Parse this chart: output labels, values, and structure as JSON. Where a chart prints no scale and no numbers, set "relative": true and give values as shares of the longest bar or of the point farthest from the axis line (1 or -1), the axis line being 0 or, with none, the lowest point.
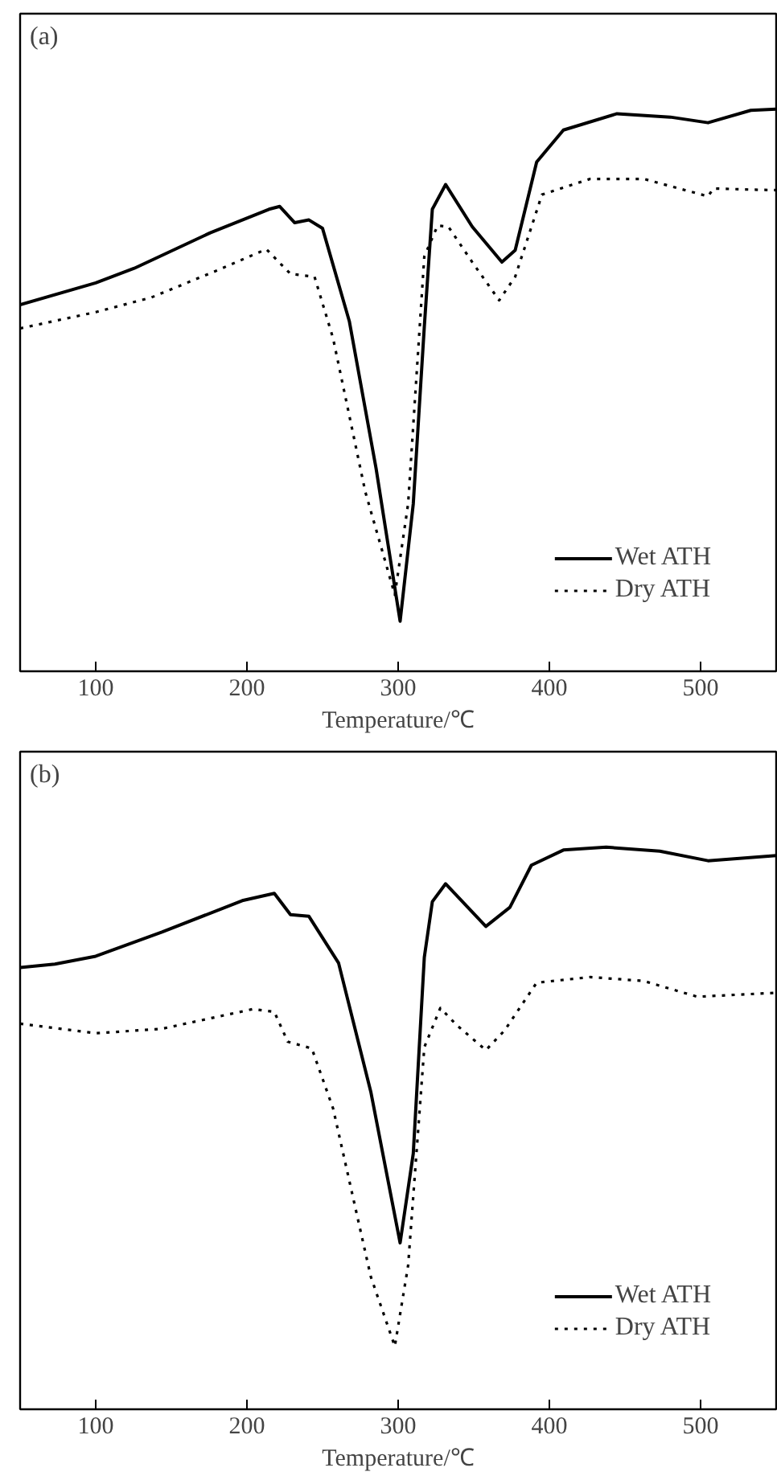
{
  "chart_data": [
    {
      "type": "line",
      "relative": true,
      "xlabel": "Temperature/℃",
      "annotations": [
        "(a)"
      ],
      "xlim": [
        50,
        550
      ],
      "xticks": [
        100,
        200,
        300,
        400,
        500
      ],
      "grid": false,
      "legend": "bottom right",
      "tick_labels": "x",
      "series": [
        {
          "name": "Wet ATH",
          "color": "#000000",
          "line_style": "solid",
          "x": [
            50,
            100,
            125.5,
            175.7,
            214.6,
            221.7,
            231.6,
            241,
            250,
            267.7,
            285.4,
            301.3,
            310,
            317.3,
            322.6,
            331.4,
            349,
            368.6,
            377.4,
            391.6,
            409.3,
            444.7,
            480,
            504.9,
            533.2,
            550
          ],
          "values": [
            0.652,
            0.691,
            0.717,
            0.78,
            0.822,
            0.827,
            0.798,
            0.803,
            0.788,
            0.623,
            0.361,
            0.089,
            0.298,
            0.613,
            0.822,
            0.866,
            0.791,
            0.728,
            0.749,
            0.906,
            0.963,
            0.992,
            0.986,
            0.976,
            0.998,
            1.0
          ]
        },
        {
          "name": "Dry ATH",
          "color": "#000000",
          "line_style": "dotted",
          "x": [
            50,
            100,
            136.7,
            179.2,
            212.8,
            228.8,
            244.7,
            257,
            278.3,
            297.8,
            306.6,
            317.3,
            326.1,
            333.2,
            349,
            366.8,
            377.4,
            395.1,
            427,
            462.4,
            504.9,
            508.5,
            533.2,
            550
          ],
          "values": [
            0.61,
            0.639,
            0.665,
            0.712,
            0.751,
            0.707,
            0.702,
            0.592,
            0.319,
            0.136,
            0.298,
            0.738,
            0.793,
            0.791,
            0.728,
            0.66,
            0.702,
            0.848,
            0.876,
            0.876,
            0.845,
            0.859,
            0.857,
            0.856
          ]
        }
      ]
    },
    {
      "type": "line",
      "relative": true,
      "xlabel": "Temperature/℃",
      "annotations": [
        "(b)"
      ],
      "xlim": [
        50,
        550
      ],
      "xticks": [
        100,
        200,
        300,
        400,
        500
      ],
      "grid": false,
      "legend": "bottom right",
      "tick_labels": "x",
      "series": [
        {
          "name": "Wet ATH",
          "color": "#000000",
          "line_style": "solid",
          "x": [
            50,
            73,
            100,
            143.8,
            196.9,
            218.1,
            228.8,
            241,
            260.6,
            281.9,
            301.3,
            310,
            317.3,
            322.6,
            331.4,
            358,
            373.9,
            388.1,
            409.3,
            437.6,
            473,
            504.9,
            550
          ],
          "values": [
            0.786,
            0.792,
            0.806,
            0.849,
            0.905,
            0.918,
            0.88,
            0.877,
            0.794,
            0.565,
            0.296,
            0.455,
            0.804,
            0.903,
            0.935,
            0.859,
            0.893,
            0.968,
            0.995,
            1.0,
            0.993,
            0.976,
            0.985
          ]
        },
        {
          "name": "Dry ATH",
          "color": "#000000",
          "line_style": "dotted",
          "x": [
            50,
            100,
            143.8,
            204,
            218.1,
            227,
            242.9,
            257,
            281.9,
            297.8,
            306.6,
            317.3,
            327.9,
            338.5,
            358,
            370.4,
            391.6,
            427,
            462.4,
            497.8,
            550
          ],
          "values": [
            0.686,
            0.669,
            0.677,
            0.712,
            0.707,
            0.654,
            0.642,
            0.535,
            0.236,
            0.112,
            0.256,
            0.644,
            0.714,
            0.684,
            0.639,
            0.674,
            0.759,
            0.769,
            0.762,
            0.734,
            0.741
          ]
        }
      ]
    }
  ]
}
